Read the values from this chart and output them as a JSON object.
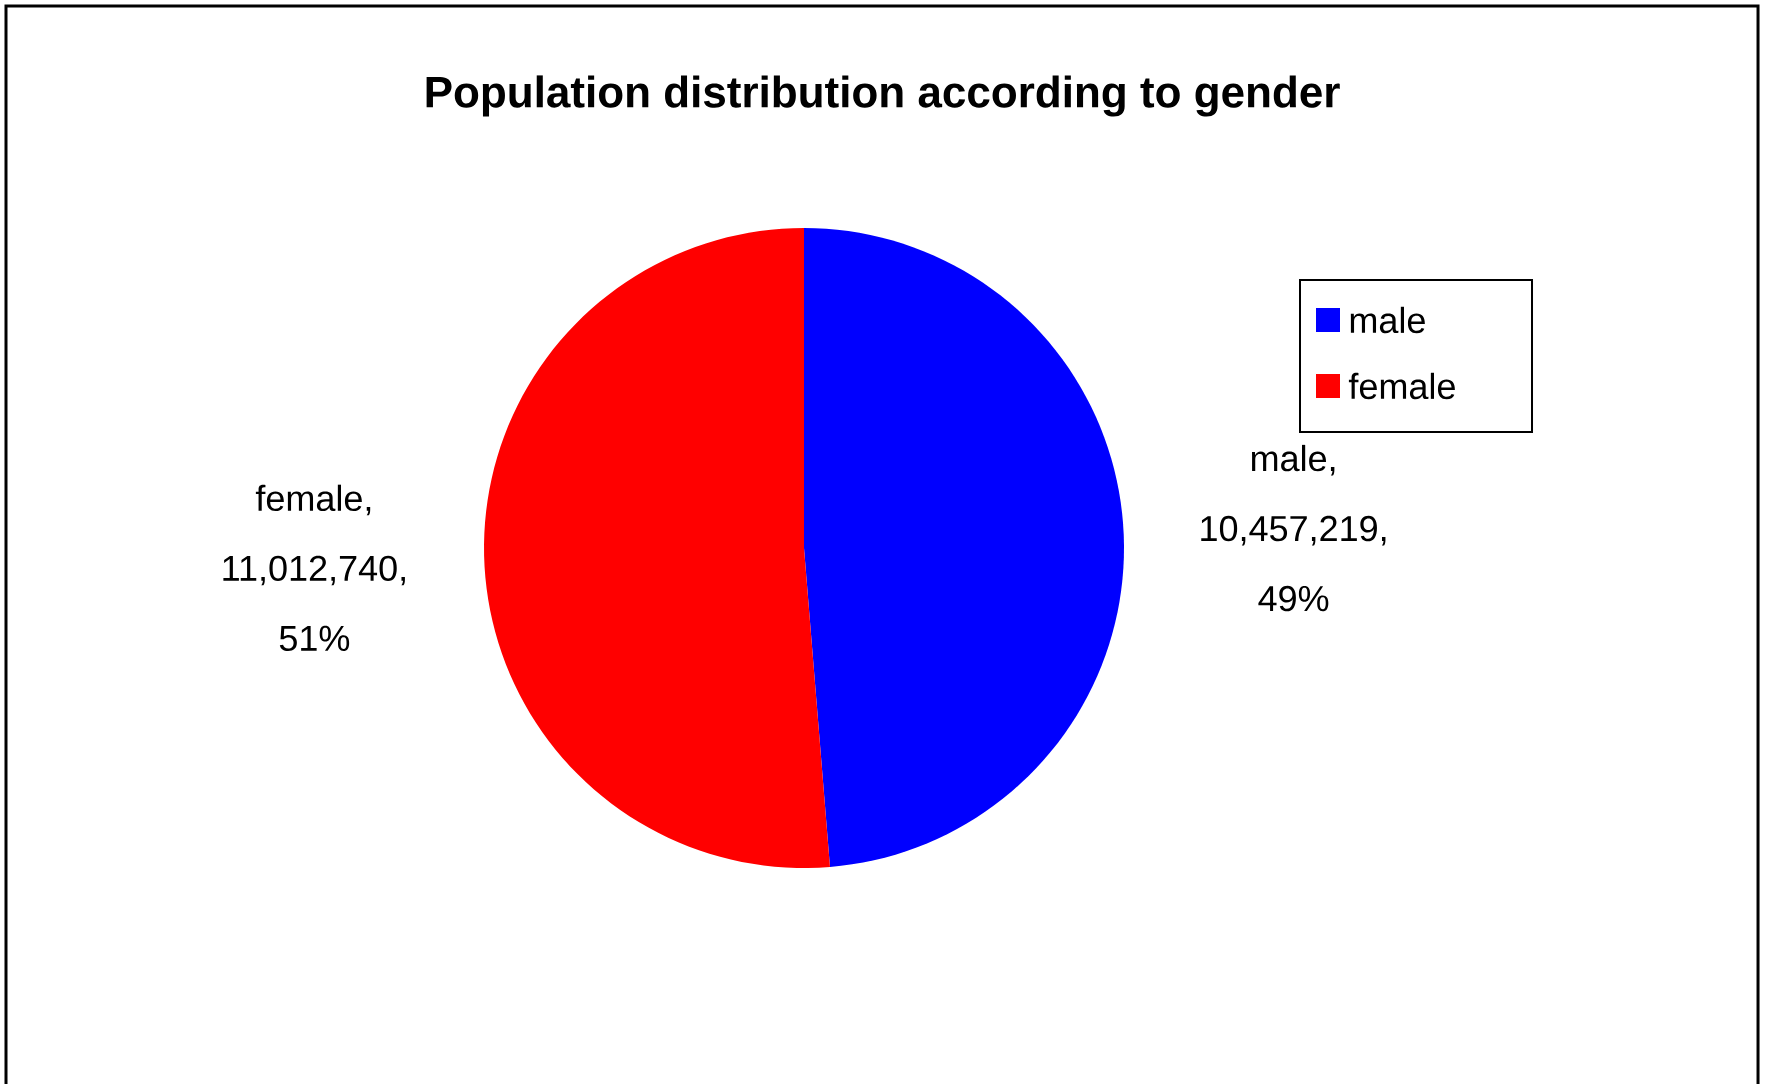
{
  "chart_data": {
    "type": "pie",
    "title": "Population distribution according to gender",
    "categories": [
      "male",
      "female"
    ],
    "values": [
      10457219,
      11012740
    ],
    "colors": [
      "#0000ff",
      "#ff0000"
    ],
    "value_labels": [
      "male, 10,457,219, 49%",
      "female, 11,012,740, 51%"
    ],
    "legend": "top right"
  }
}
